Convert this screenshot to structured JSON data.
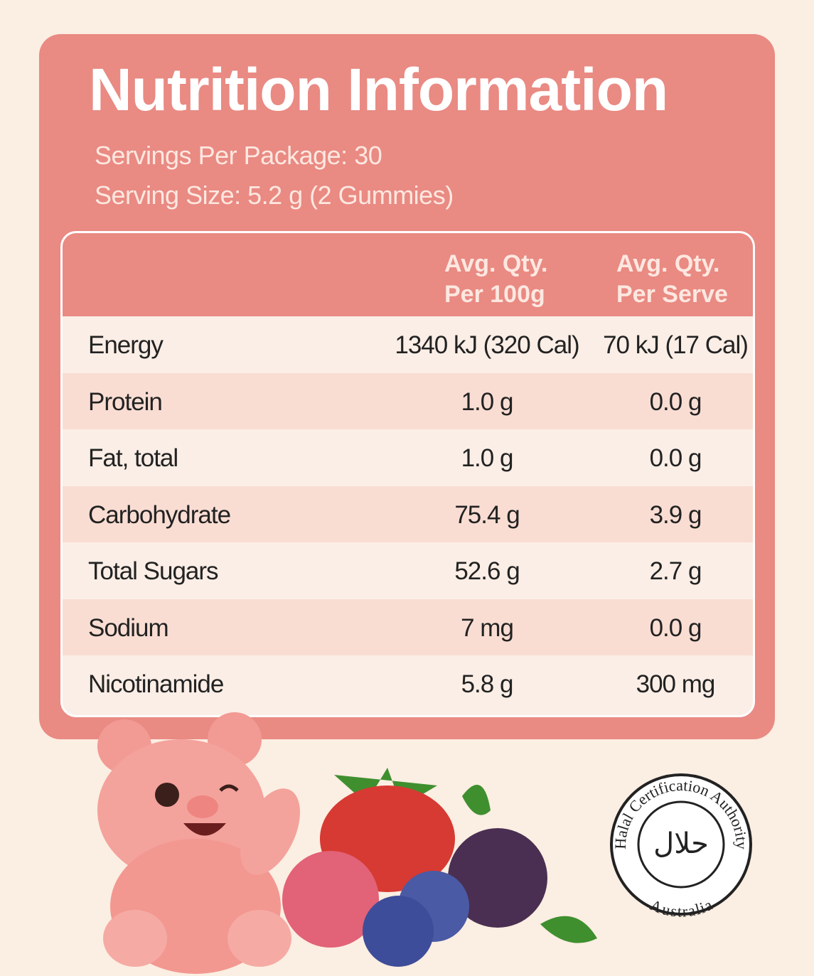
{
  "header": {
    "title": "Nutrition Information",
    "servings_per_package": "Servings Per Package: 30",
    "serving_size": "Serving Size: 5.2 g (2 Gummies)"
  },
  "table": {
    "columns": [
      [
        "Avg. Qty.",
        "Per 100g"
      ],
      [
        "Avg. Qty.",
        "Per Serve"
      ]
    ],
    "rows": [
      [
        "Energy",
        "1340 kJ (320 Cal)",
        "70 kJ (17 Cal)"
      ],
      [
        "Protein",
        "1.0 g",
        "0.0 g"
      ],
      [
        "Fat, total",
        "1.0 g",
        "0.0 g"
      ],
      [
        "Carbohydrate",
        "75.4 g",
        "3.9 g"
      ],
      [
        "Total Sugars",
        "52.6 g",
        "2.7 g"
      ],
      [
        "Sodium",
        "7 mg",
        "0.0 g"
      ],
      [
        "Nicotinamide",
        "5.8 g",
        "300 mg"
      ]
    ]
  },
  "seal": {
    "arabic": "حلال",
    "top": "Halal Certification Authority",
    "bottom": "Australia"
  }
}
